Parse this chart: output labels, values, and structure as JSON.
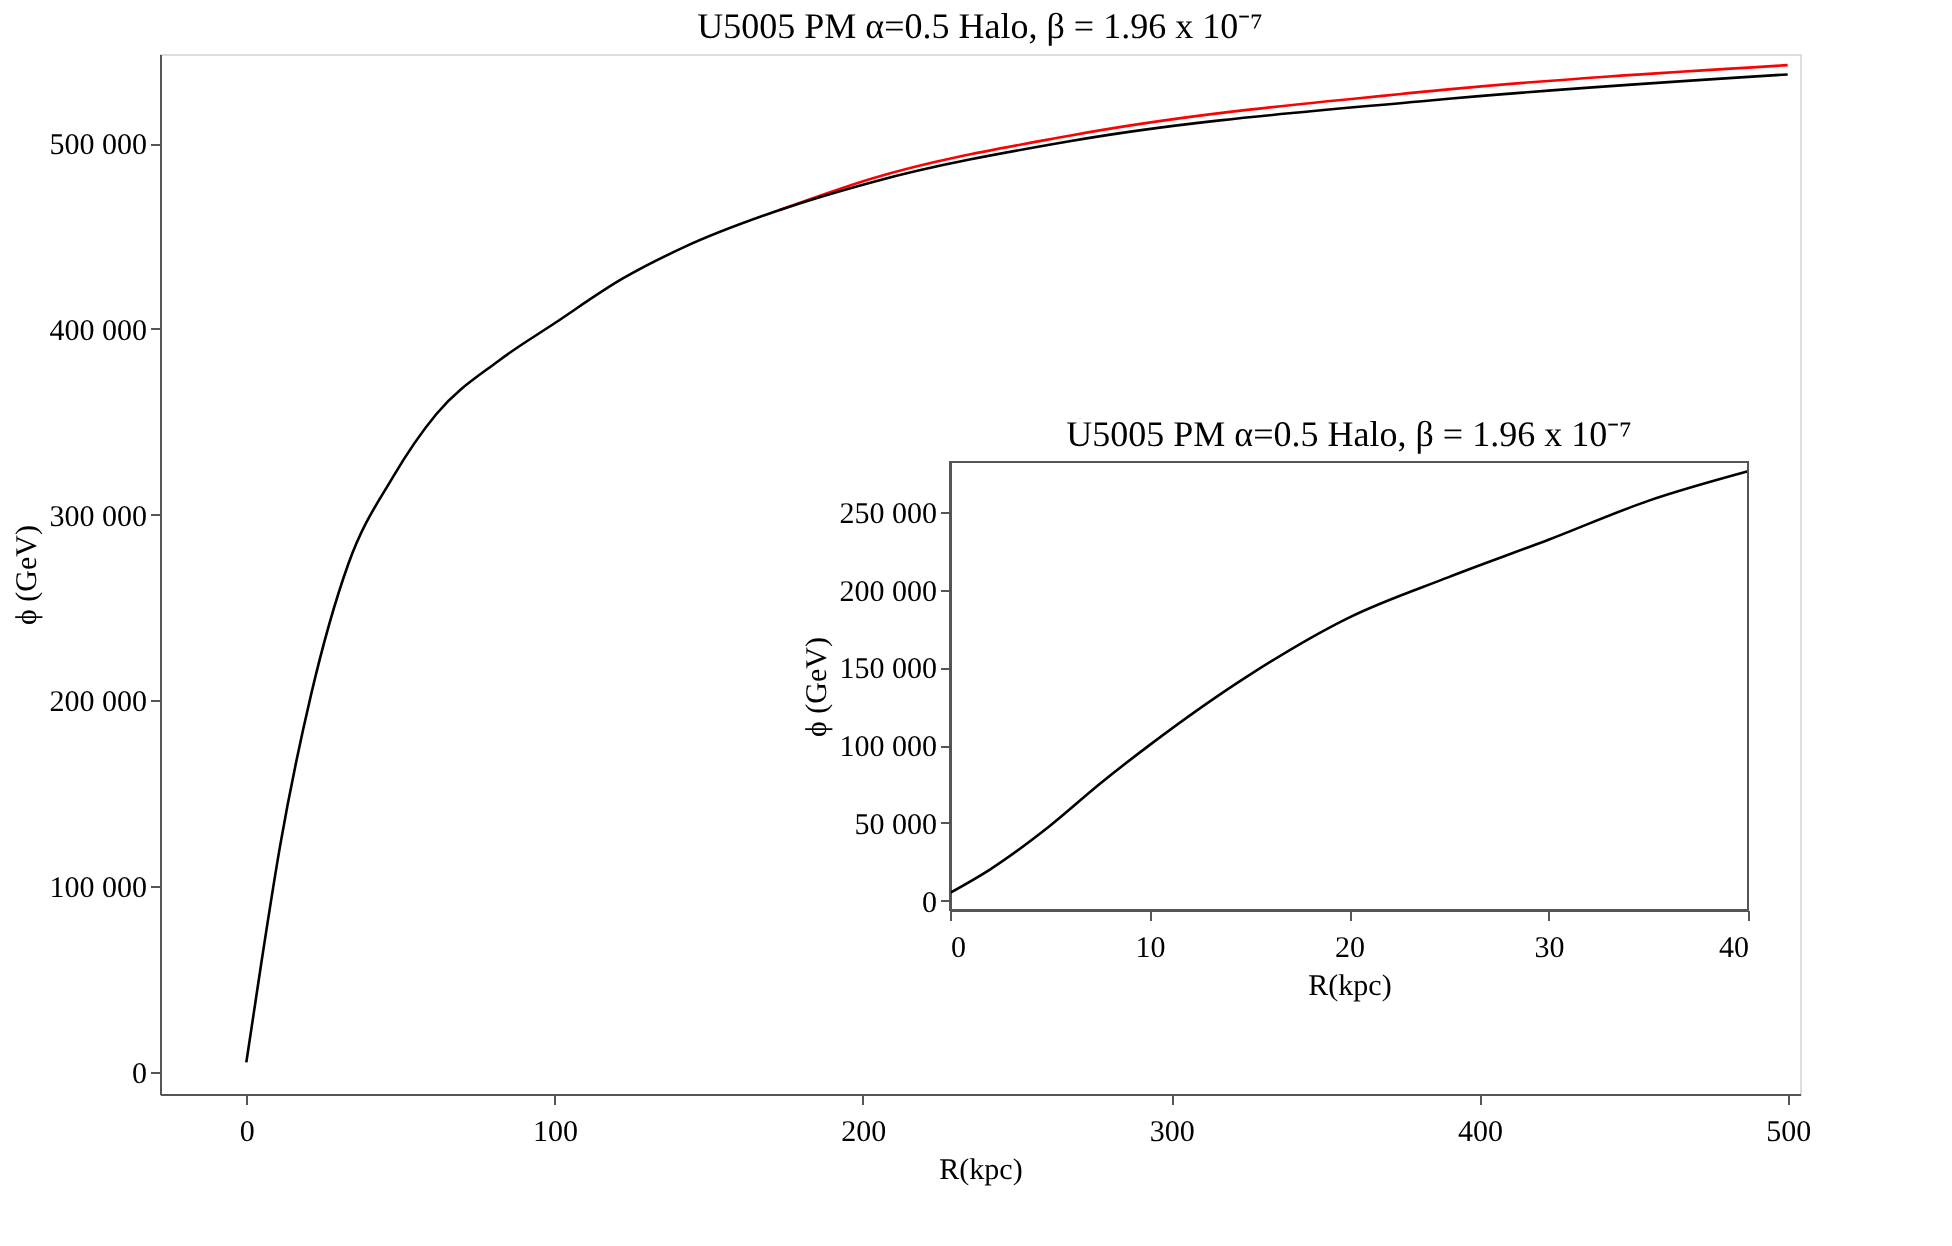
{
  "chart_data": [
    {
      "type": "line",
      "title": "U5005 PM α=0.5 Halo, β = 1.96 x 10⁻⁷",
      "xlabel": "R(kpc)",
      "ylabel": "ϕ (GeV)",
      "xlim": [
        -28,
        504
      ],
      "ylim": [
        -12000,
        548000
      ],
      "xticks": [
        0,
        100,
        200,
        300,
        400,
        500
      ],
      "yticks": [
        0,
        {
          "value": 100000,
          "label": "100 000"
        },
        {
          "value": 200000,
          "label": "200 000"
        },
        {
          "value": 300000,
          "label": "300 000"
        },
        {
          "value": 400000,
          "label": "400 000"
        },
        {
          "value": 500000,
          "label": "500 000"
        }
      ],
      "grid": false,
      "marker": "none",
      "line_style": "solid",
      "series": [
        {
          "color": "#ff0000",
          "x": [
            173,
            203,
            267,
            384,
            500
          ],
          "values": [
            464000,
            481000,
            504000,
            528000,
            542000
          ]
        },
        {
          "color": "#000000",
          "x": [
            0,
            5,
            11,
            21,
            33,
            47.5,
            61.6,
            82,
            100,
            122,
            142,
            173,
            203,
            267,
            384,
            500
          ],
          "values": [
            5000,
            60000,
            122000,
            203000,
            273000,
            320000,
            354000,
            383000,
            403000,
            427000,
            444000,
            464000,
            479000,
            501000,
            523000,
            537000
          ]
        }
      ]
    },
    {
      "type": "line",
      "title": "U5005 PM α=0.5 Halo, β = 1.96 x 10⁻⁷",
      "xlabel": "R(kpc)",
      "ylabel": "ϕ (GeV)",
      "xlim": [
        0,
        40
      ],
      "ylim": [
        -6000,
        282000
      ],
      "xticks": [
        0,
        10,
        20,
        30,
        40
      ],
      "yticks": [
        0,
        {
          "value": 50000,
          "label": "50 000"
        },
        {
          "value": 100000,
          "label": "100 000"
        },
        {
          "value": 150000,
          "label": "150 000"
        },
        {
          "value": 200000,
          "label": "200 000"
        },
        {
          "value": 250000,
          "label": "250 000"
        }
      ],
      "grid": false,
      "marker": "none",
      "line_style": "solid",
      "series": [
        {
          "color": "#000000",
          "x": [
            0,
            2,
            5,
            7.5,
            10,
            15,
            20,
            25,
            30,
            35,
            40
          ],
          "values": [
            5000,
            20000,
            48000,
            75000,
            100000,
            145000,
            182000,
            208000,
            232000,
            257000,
            276000
          ]
        }
      ]
    }
  ]
}
